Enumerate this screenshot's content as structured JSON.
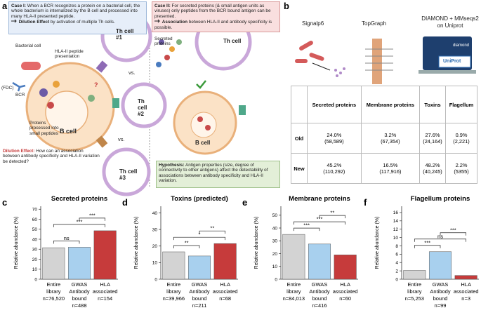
{
  "panel_labels": [
    "a",
    "b",
    "c",
    "d",
    "e",
    "f"
  ],
  "panel_a": {
    "case_i": {
      "heading": "Case I:",
      "body": "When a BCR recognizes a protein on a bacterial cell, the whole bacterium is internalized by the B cell and processed into many HLA-II presented peptide.",
      "conclusion_bold": "Dilution Effect",
      "conclusion": "by activation of multiple Th cells."
    },
    "case_ii": {
      "heading": "Case II:",
      "body": "For secreted proteins (& small antigen units as viruses) only peptides from the BCR bound antigen can be presented.",
      "conclusion_bold": "Association",
      "conclusion": "between HLA-II and antibody specificity is  possible."
    },
    "left_labels": {
      "bacterial_cell": "Bacterial cell",
      "hla": "HLA-II peptide presentation",
      "fdc": "(FDC)",
      "bcr": "BCR",
      "th1": "Th cell #1",
      "vs1": "vs.",
      "th2": "Th cell #2",
      "vs2": "vs.",
      "th3": "Th cell #3",
      "b_cell": "B cell",
      "processed": "Proteins processed into small peptides",
      "q": "?"
    },
    "dilution": {
      "bold": "Dilution Effect:",
      "text": "How can an association between antibody specificity and HLA-II variation  be detected?"
    },
    "right_labels": {
      "secreted": "Secreted proteins",
      "th": "Th cell",
      "b_cell": "B cell"
    },
    "hypothesis": {
      "bold": "Hypothesis:",
      "text": "Antigen properties (size, degree of connectivity to other antigens) affect the detectability of associations between antibody specificity and HLA-II variation."
    }
  },
  "panel_b": {
    "tools": [
      "Signalp6",
      "TopGraph",
      "DIAMOND +  MMseqs2 on Uniprot"
    ],
    "logos": {
      "diamond": "diamond",
      "uniprot": "UniProt"
    },
    "table": {
      "header": [
        "Secreted proteins",
        "Membrane proteins",
        "Toxins",
        "Flagellum"
      ],
      "rows": [
        {
          "name": "Old",
          "cells": [
            [
              "24.0%",
              "(58,589)"
            ],
            [
              "3.2%",
              "(67,354)"
            ],
            [
              "27.6%",
              "(24,164)"
            ],
            [
              "0.9%",
              "(2,221)"
            ]
          ]
        },
        {
          "name": "New",
          "cells": [
            [
              "45.2%",
              "(110,292)"
            ],
            [
              "16.5%",
              "(117,916)"
            ],
            [
              "48.2%",
              "(40,245)"
            ],
            [
              "2.2%",
              "(5355)"
            ]
          ]
        }
      ]
    }
  },
  "chart_data": [
    {
      "type": "bar",
      "title": "Secreted proteins",
      "ylabel": "Relative abundance (%)",
      "categories": [
        "Entire library",
        "GWAS Antibody bound",
        "HLA associated"
      ],
      "n_labels": [
        "n=76,520",
        "n=488",
        "n=154"
      ],
      "values": [
        31.5,
        32,
        48.5
      ],
      "colors": [
        "#d3d3d3",
        "#a8d0ee",
        "#c63b3b"
      ],
      "ylim": [
        0,
        73
      ],
      "yticks": [
        0,
        10,
        20,
        30,
        40,
        50,
        60,
        70
      ],
      "significance": [
        {
          "pair": [
            0,
            1
          ],
          "label": "ns"
        },
        {
          "pair": [
            0,
            2
          ],
          "label": "***"
        },
        {
          "pair": [
            1,
            2
          ],
          "label": "***"
        }
      ]
    },
    {
      "type": "bar",
      "title": "Toxins (predicted)",
      "ylabel": "Relative abundance (%)",
      "categories": [
        "Entire library",
        "GWAS Antibody bound",
        "HLA associated"
      ],
      "n_labels": [
        "n=39,966",
        "n=211",
        "n=68"
      ],
      "values": [
        16.5,
        14,
        21.5
      ],
      "colors": [
        "#d3d3d3",
        "#a8d0ee",
        "#c63b3b"
      ],
      "ylim": [
        0,
        44
      ],
      "yticks": [
        0,
        10,
        20,
        30,
        40
      ],
      "significance": [
        {
          "pair": [
            0,
            1
          ],
          "label": "**"
        },
        {
          "pair": [
            0,
            2
          ],
          "label": "*"
        },
        {
          "pair": [
            1,
            2
          ],
          "label": "**"
        }
      ]
    },
    {
      "type": "bar",
      "title": "Membrane proteins",
      "ylabel": "Relative abundance (%)",
      "categories": [
        "Entire library",
        "GWAS Antibody bound",
        "HLA associated"
      ],
      "n_labels": [
        "n=84,013",
        "n=416",
        "n=60"
      ],
      "values": [
        35,
        27.5,
        19
      ],
      "colors": [
        "#d3d3d3",
        "#a8d0ee",
        "#c63b3b"
      ],
      "ylim": [
        0,
        57
      ],
      "yticks": [
        0,
        10,
        20,
        30,
        40,
        50
      ],
      "significance": [
        {
          "pair": [
            0,
            1
          ],
          "label": "***"
        },
        {
          "pair": [
            0,
            2
          ],
          "label": "***"
        },
        {
          "pair": [
            1,
            2
          ],
          "label": "**"
        }
      ]
    },
    {
      "type": "bar",
      "title": "Flagellum proteins",
      "ylabel": "Relative abundance (%)",
      "categories": [
        "Entire library",
        "GWAS Antibody bound",
        "HLA associated"
      ],
      "n_labels": [
        "n=5,253",
        "n=99",
        "n=3"
      ],
      "values": [
        2.1,
        6.6,
        0.9
      ],
      "colors": [
        "#d3d3d3",
        "#a8d0ee",
        "#c63b3b"
      ],
      "ylim": [
        0,
        17.5
      ],
      "yticks": [
        0,
        2,
        4,
        6,
        8,
        10,
        12,
        14,
        16
      ],
      "significance": [
        {
          "pair": [
            0,
            1
          ],
          "label": "***"
        },
        {
          "pair": [
            0,
            2
          ],
          "label": "ns"
        },
        {
          "pair": [
            1,
            2
          ],
          "label": "***"
        }
      ]
    }
  ]
}
